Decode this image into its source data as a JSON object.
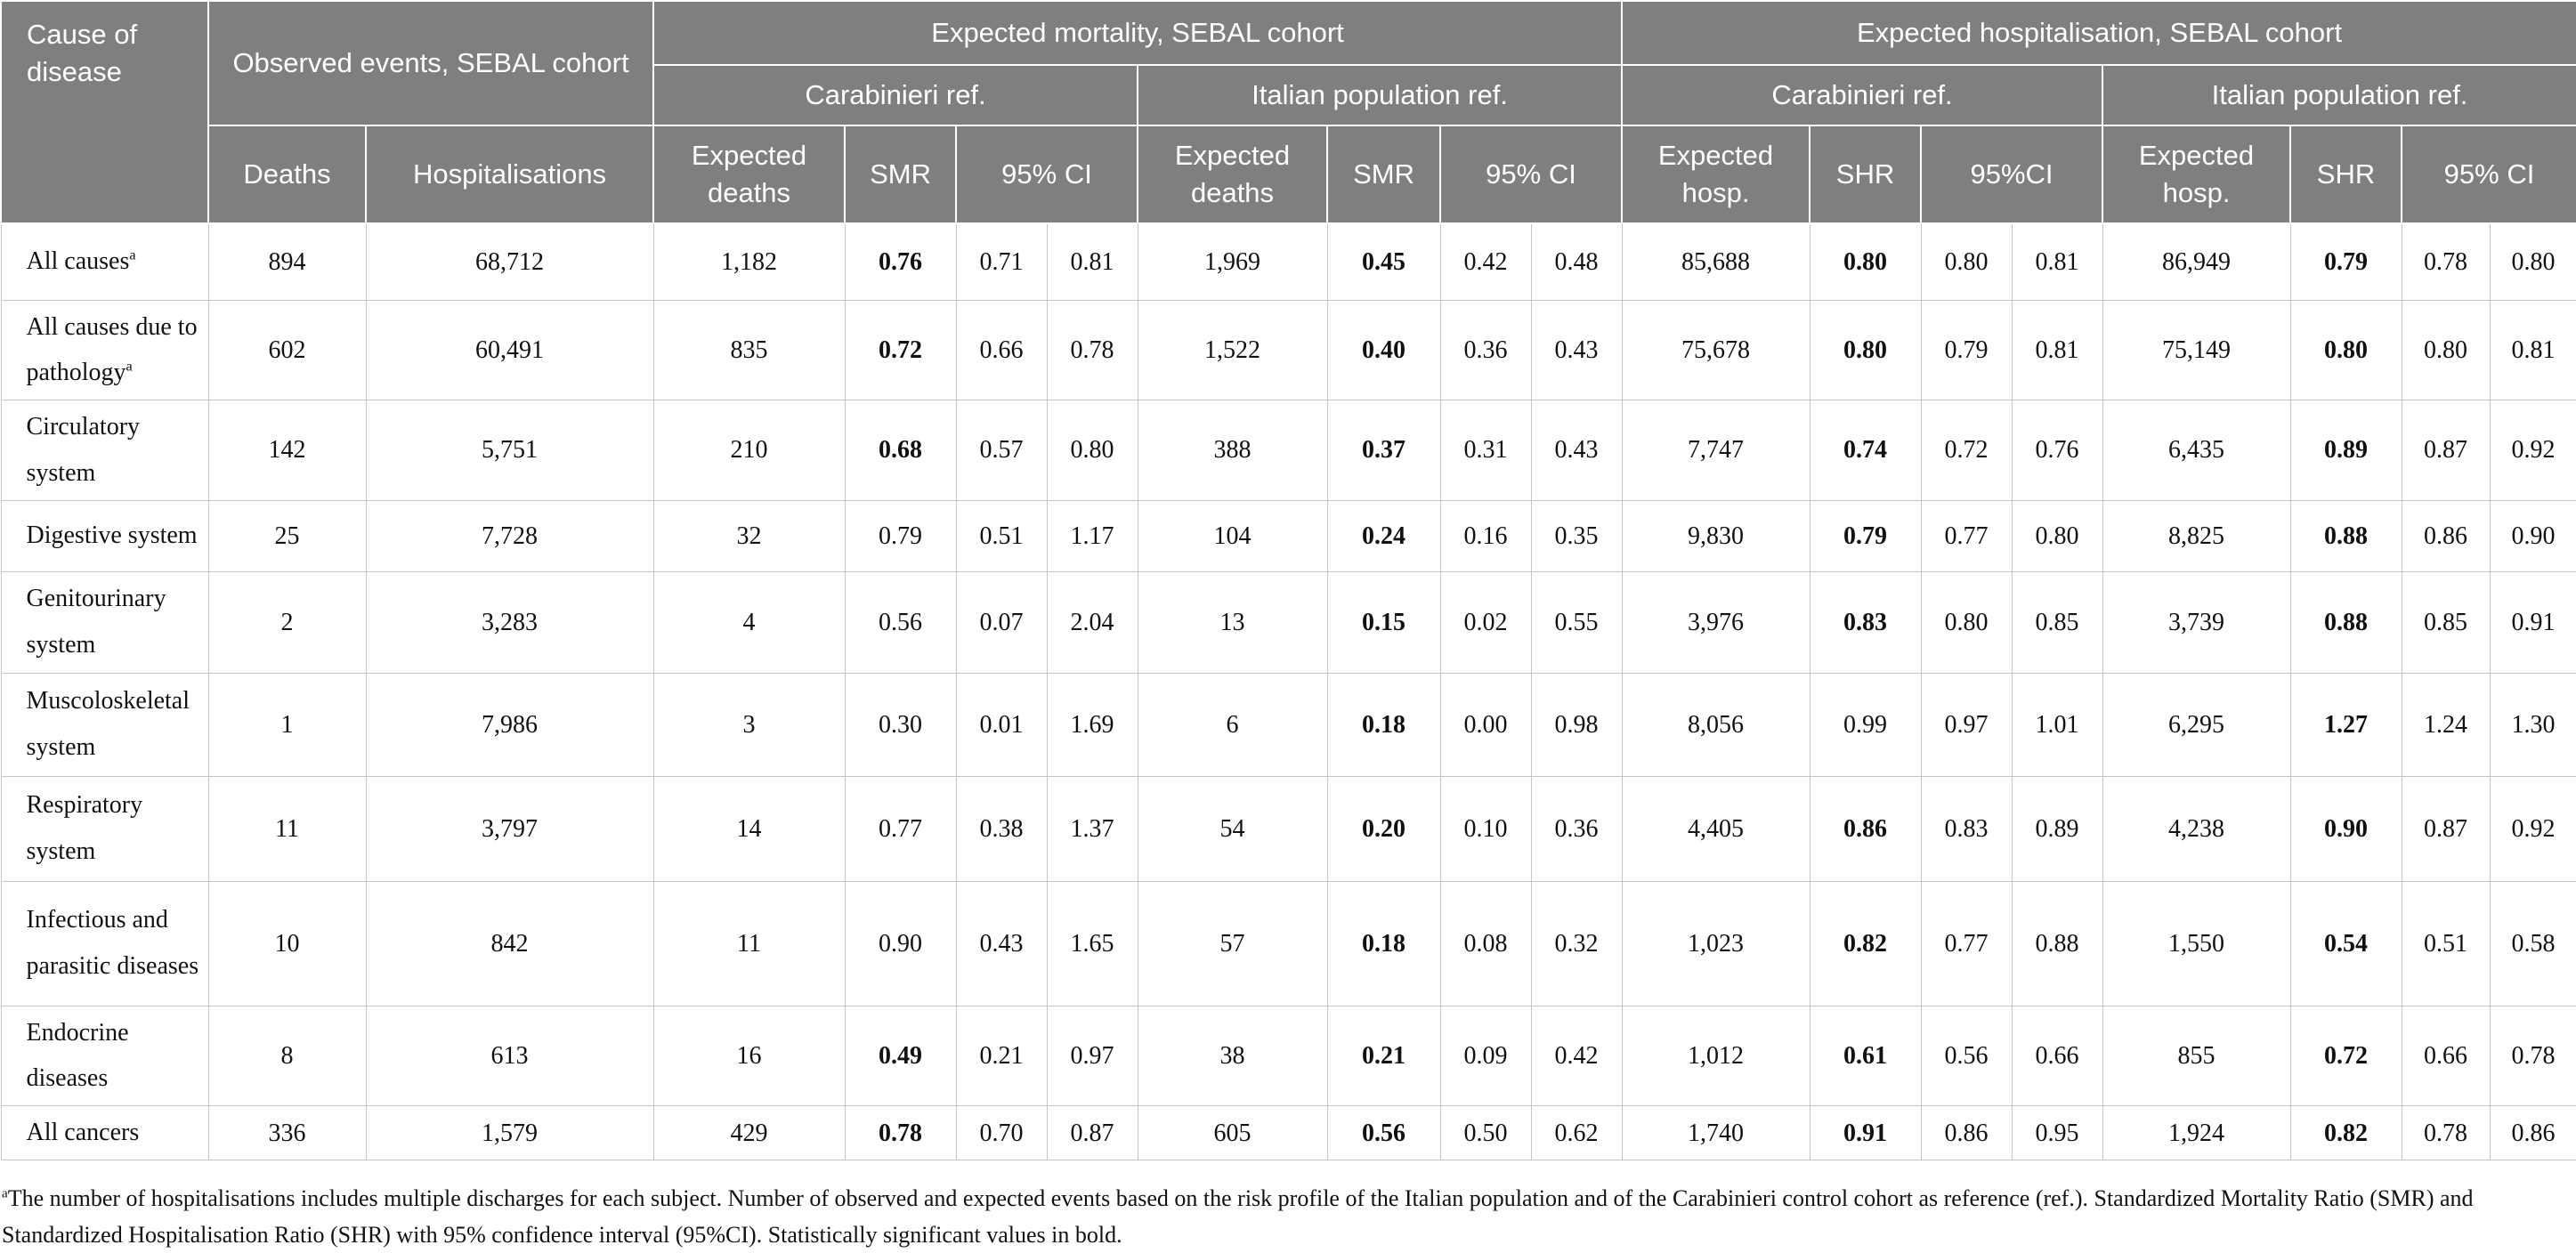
{
  "table": {
    "header": {
      "cause_of_disease": "Cause of disease",
      "observed_events": "Observed events, SEBAL cohort",
      "expected_mortality": "Expected mortality, SEBAL cohort",
      "expected_hospitalisation": "Expected hospitalisation, SEBAL cohort",
      "mortality_carabinieri": "Carabinieri ref.",
      "mortality_italian": "Italian population ref.",
      "hosp_carabinieri": "Carabinieri ref.",
      "hosp_italian": "Italian population ref.",
      "deaths": "Deaths",
      "hospitalisations": "Hospitalisations",
      "expected_deaths_1": "Expected deaths",
      "smr_1": "SMR",
      "ci_1": "95% CI",
      "expected_deaths_2": "Expected deaths",
      "smr_2": "SMR",
      "ci_2": "95% CI",
      "expected_hosp_1": "Expected hosp.",
      "shr_1": "SHR",
      "ci_3": "95%CI",
      "expected_hosp_2": "Expected hosp.",
      "shr_2": "SHR",
      "ci_4": "95% CI"
    },
    "rows": [
      {
        "cause": "All causes",
        "sup": "a",
        "values": [
          [
            "894",
            0
          ],
          [
            "68,712",
            0
          ],
          [
            "1,182",
            0
          ],
          [
            "0.76",
            1
          ],
          [
            "0.71",
            0
          ],
          [
            "0.81",
            0
          ],
          [
            "1,969",
            0
          ],
          [
            "0.45",
            1
          ],
          [
            "0.42",
            0
          ],
          [
            "0.48",
            0
          ],
          [
            "85,688",
            0
          ],
          [
            "0.80",
            1
          ],
          [
            "0.80",
            0
          ],
          [
            "0.81",
            0
          ],
          [
            "86,949",
            0
          ],
          [
            "0.79",
            1
          ],
          [
            "0.78",
            0
          ],
          [
            "0.80",
            0
          ]
        ]
      },
      {
        "cause": "All causes due to pathology",
        "sup": "a",
        "values": [
          [
            "602",
            0
          ],
          [
            "60,491",
            0
          ],
          [
            "835",
            0
          ],
          [
            "0.72",
            1
          ],
          [
            "0.66",
            0
          ],
          [
            "0.78",
            0
          ],
          [
            "1,522",
            0
          ],
          [
            "0.40",
            1
          ],
          [
            "0.36",
            0
          ],
          [
            "0.43",
            0
          ],
          [
            "75,678",
            0
          ],
          [
            "0.80",
            1
          ],
          [
            "0.79",
            0
          ],
          [
            "0.81",
            0
          ],
          [
            "75,149",
            0
          ],
          [
            "0.80",
            1
          ],
          [
            "0.80",
            0
          ],
          [
            "0.81",
            0
          ]
        ]
      },
      {
        "cause": "Circulatory system",
        "sup": "",
        "values": [
          [
            "142",
            0
          ],
          [
            "5,751",
            0
          ],
          [
            "210",
            0
          ],
          [
            "0.68",
            1
          ],
          [
            "0.57",
            0
          ],
          [
            "0.80",
            0
          ],
          [
            "388",
            0
          ],
          [
            "0.37",
            1
          ],
          [
            "0.31",
            0
          ],
          [
            "0.43",
            0
          ],
          [
            "7,747",
            0
          ],
          [
            "0.74",
            1
          ],
          [
            "0.72",
            0
          ],
          [
            "0.76",
            0
          ],
          [
            "6,435",
            0
          ],
          [
            "0.89",
            1
          ],
          [
            "0.87",
            0
          ],
          [
            "0.92",
            0
          ]
        ]
      },
      {
        "cause": "Digestive system",
        "sup": "",
        "values": [
          [
            "25",
            0
          ],
          [
            "7,728",
            0
          ],
          [
            "32",
            0
          ],
          [
            "0.79",
            0
          ],
          [
            "0.51",
            0
          ],
          [
            "1.17",
            0
          ],
          [
            "104",
            0
          ],
          [
            "0.24",
            1
          ],
          [
            "0.16",
            0
          ],
          [
            "0.35",
            0
          ],
          [
            "9,830",
            0
          ],
          [
            "0.79",
            1
          ],
          [
            "0.77",
            0
          ],
          [
            "0.80",
            0
          ],
          [
            "8,825",
            0
          ],
          [
            "0.88",
            1
          ],
          [
            "0.86",
            0
          ],
          [
            "0.90",
            0
          ]
        ]
      },
      {
        "cause": "Genitourinary system",
        "sup": "",
        "values": [
          [
            "2",
            0
          ],
          [
            "3,283",
            0
          ],
          [
            "4",
            0
          ],
          [
            "0.56",
            0
          ],
          [
            "0.07",
            0
          ],
          [
            "2.04",
            0
          ],
          [
            "13",
            0
          ],
          [
            "0.15",
            1
          ],
          [
            "0.02",
            0
          ],
          [
            "0.55",
            0
          ],
          [
            "3,976",
            0
          ],
          [
            "0.83",
            1
          ],
          [
            "0.80",
            0
          ],
          [
            "0.85",
            0
          ],
          [
            "3,739",
            0
          ],
          [
            "0.88",
            1
          ],
          [
            "0.85",
            0
          ],
          [
            "0.91",
            0
          ]
        ]
      },
      {
        "cause": "Muscoloskeletal system",
        "sup": "",
        "values": [
          [
            "1",
            0
          ],
          [
            "7,986",
            0
          ],
          [
            "3",
            0
          ],
          [
            "0.30",
            0
          ],
          [
            "0.01",
            0
          ],
          [
            "1.69",
            0
          ],
          [
            "6",
            0
          ],
          [
            "0.18",
            1
          ],
          [
            "0.00",
            0
          ],
          [
            "0.98",
            0
          ],
          [
            "8,056",
            0
          ],
          [
            "0.99",
            0
          ],
          [
            "0.97",
            0
          ],
          [
            "1.01",
            0
          ],
          [
            "6,295",
            0
          ],
          [
            "1.27",
            1
          ],
          [
            "1.24",
            0
          ],
          [
            "1.30",
            0
          ]
        ]
      },
      {
        "cause": "Respiratory system",
        "sup": "",
        "values": [
          [
            "11",
            0
          ],
          [
            "3,797",
            0
          ],
          [
            "14",
            0
          ],
          [
            "0.77",
            0
          ],
          [
            "0.38",
            0
          ],
          [
            "1.37",
            0
          ],
          [
            "54",
            0
          ],
          [
            "0.20",
            1
          ],
          [
            "0.10",
            0
          ],
          [
            "0.36",
            0
          ],
          [
            "4,405",
            0
          ],
          [
            "0.86",
            1
          ],
          [
            "0.83",
            0
          ],
          [
            "0.89",
            0
          ],
          [
            "4,238",
            0
          ],
          [
            "0.90",
            1
          ],
          [
            "0.87",
            0
          ],
          [
            "0.92",
            0
          ]
        ]
      },
      {
        "cause": "Infectious and parasitic diseases",
        "sup": "",
        "values": [
          [
            "10",
            0
          ],
          [
            "842",
            0
          ],
          [
            "11",
            0
          ],
          [
            "0.90",
            0
          ],
          [
            "0.43",
            0
          ],
          [
            "1.65",
            0
          ],
          [
            "57",
            0
          ],
          [
            "0.18",
            1
          ],
          [
            "0.08",
            0
          ],
          [
            "0.32",
            0
          ],
          [
            "1,023",
            0
          ],
          [
            "0.82",
            1
          ],
          [
            "0.77",
            0
          ],
          [
            "0.88",
            0
          ],
          [
            "1,550",
            0
          ],
          [
            "0.54",
            1
          ],
          [
            "0.51",
            0
          ],
          [
            "0.58",
            0
          ]
        ]
      },
      {
        "cause": "Endocrine diseases",
        "sup": "",
        "values": [
          [
            "8",
            0
          ],
          [
            "613",
            0
          ],
          [
            "16",
            0
          ],
          [
            "0.49",
            1
          ],
          [
            "0.21",
            0
          ],
          [
            "0.97",
            0
          ],
          [
            "38",
            0
          ],
          [
            "0.21",
            1
          ],
          [
            "0.09",
            0
          ],
          [
            "0.42",
            0
          ],
          [
            "1,012",
            0
          ],
          [
            "0.61",
            1
          ],
          [
            "0.56",
            0
          ],
          [
            "0.66",
            0
          ],
          [
            "855",
            0
          ],
          [
            "0.72",
            1
          ],
          [
            "0.66",
            0
          ],
          [
            "0.78",
            0
          ]
        ]
      },
      {
        "cause": "All cancers",
        "sup": "",
        "values": [
          [
            "336",
            0
          ],
          [
            "1,579",
            0
          ],
          [
            "429",
            0
          ],
          [
            "0.78",
            1
          ],
          [
            "0.70",
            0
          ],
          [
            "0.87",
            0
          ],
          [
            "605",
            0
          ],
          [
            "0.56",
            1
          ],
          [
            "0.50",
            0
          ],
          [
            "0.62",
            0
          ],
          [
            "1,740",
            0
          ],
          [
            "0.91",
            1
          ],
          [
            "0.86",
            0
          ],
          [
            "0.95",
            0
          ],
          [
            "1,924",
            0
          ],
          [
            "0.82",
            1
          ],
          [
            "0.78",
            0
          ],
          [
            "0.86",
            0
          ]
        ]
      }
    ]
  },
  "footnote": {
    "marker": "a",
    "text": "The number of hospitalisations includes multiple discharges for each subject. Number of observed and expected events based on the risk profile of the Italian population and of the Carabinieri control cohort as reference (ref.). Standardized Mortality Ratio (SMR) and Standardized Hospitalisation Ratio (SHR) with 95% confidence interval (95%CI). Statistically significant values in bold."
  }
}
